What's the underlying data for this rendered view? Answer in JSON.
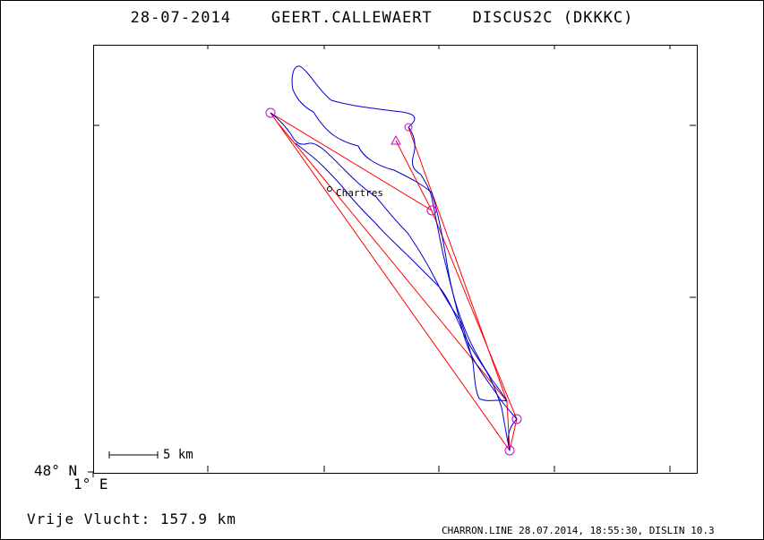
{
  "header": {
    "date": "28-07-2014",
    "pilot": "GEERT.CALLEWAERT",
    "glider": "DISCUS2C (DKKKC)"
  },
  "axes": {
    "lat_label": "48° N",
    "lon_label": "1° E"
  },
  "scale_bar": {
    "label": "5 km"
  },
  "town": {
    "name": "Chartres"
  },
  "result": {
    "label": "Vrije Vlucht:",
    "value": "157.9 km"
  },
  "footer": {
    "text": "CHARRON.LINE 28.07.2014, 18:55:30, DISLIN 10.3"
  },
  "colors": {
    "track": "#0000cc",
    "task": "#ff0000",
    "turnpoint": "#cc00cc",
    "axes": "#000000"
  }
}
